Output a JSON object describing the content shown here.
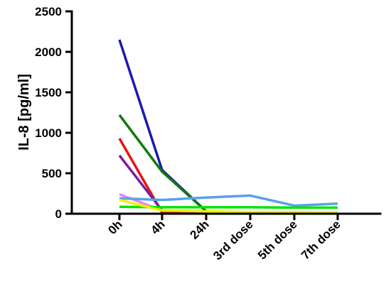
{
  "chart_data": {
    "type": "line",
    "title": "",
    "xlabel": "",
    "ylabel": "IL-8 [pg/ml]",
    "categories": [
      "0h",
      "4h",
      "24h",
      "3rd dose",
      "5th dose",
      "7th dose"
    ],
    "yticks": [
      "0",
      "500",
      "1000",
      "1500",
      "2000",
      "2500"
    ],
    "ylim": [
      0,
      2500
    ],
    "grid": false,
    "legend": "none",
    "series": [
      {
        "color": "#1a1ab0",
        "values": [
          2150,
          540,
          30,
          null,
          null,
          null
        ]
      },
      {
        "color": "#0f7a0f",
        "values": [
          1220,
          520,
          30,
          null,
          null,
          null
        ]
      },
      {
        "color": "#ee1111",
        "values": [
          930,
          15,
          15,
          10,
          null,
          null
        ]
      },
      {
        "color": "#7a1fa2",
        "values": [
          720,
          40,
          20,
          null,
          null,
          null
        ]
      },
      {
        "color": "#ee82ee",
        "values": [
          240,
          40,
          30,
          null,
          null,
          null
        ]
      },
      {
        "color": "#5aa0ef",
        "values": [
          190,
          170,
          200,
          225,
          100,
          125
        ]
      },
      {
        "color": "#00e600",
        "values": [
          85,
          80,
          80,
          80,
          75,
          75
        ]
      },
      {
        "color": "#f0f000",
        "values": [
          170,
          40,
          30,
          20,
          20,
          15
        ]
      }
    ]
  }
}
